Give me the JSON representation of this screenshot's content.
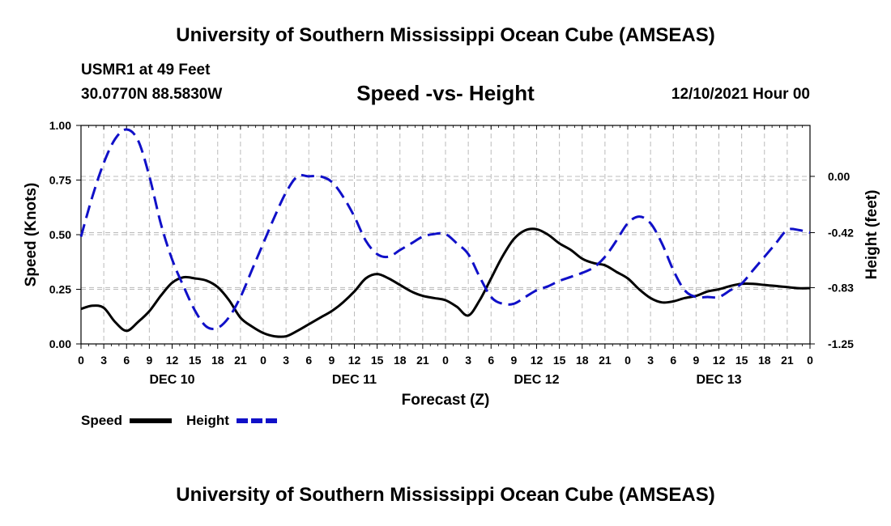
{
  "header": {
    "title": "University of Southern Mississippi Ocean Cube (AMSEAS)",
    "station": "USMR1 at 49 Feet",
    "coords": "30.0770N  88.5830W",
    "subtitle": "Speed -vs- Height",
    "datetime": "12/10/2021 Hour 00"
  },
  "footer": {
    "title": "University of Southern Mississippi Ocean Cube (AMSEAS)"
  },
  "colors": {
    "speed": "#000000",
    "height": "#1010c8",
    "grid": "#bbbbbb"
  },
  "chart_data": {
    "type": "line",
    "xlabel": "Forecast (Z)",
    "ylabel": "Speed (Knots)",
    "y2label": "Height (feet)",
    "xlim": [
      0,
      96
    ],
    "ylim": [
      0,
      1
    ],
    "y2lim": [
      -1.25,
      0.38
    ],
    "x_ticks": [
      0,
      3,
      6,
      9,
      12,
      15,
      18,
      21,
      24,
      27,
      30,
      33,
      36,
      39,
      42,
      45,
      48,
      51,
      54,
      57,
      60,
      63,
      66,
      69,
      72,
      75,
      78,
      81,
      84,
      87,
      90,
      93,
      96
    ],
    "x_tick_labels": [
      "0",
      "3",
      "6",
      "9",
      "12",
      "15",
      "18",
      "21",
      "0",
      "3",
      "6",
      "9",
      "12",
      "15",
      "18",
      "21",
      "0",
      "3",
      "6",
      "9",
      "12",
      "15",
      "18",
      "21",
      "0",
      "3",
      "6",
      "9",
      "12",
      "15",
      "18",
      "21",
      "0"
    ],
    "day_labels": [
      {
        "x": 12,
        "label": "DEC 10"
      },
      {
        "x": 36,
        "label": "DEC 11"
      },
      {
        "x": 60,
        "label": "DEC 12"
      },
      {
        "x": 84,
        "label": "DEC 13"
      }
    ],
    "y_ticks": [
      0.0,
      0.25,
      0.5,
      0.75,
      1.0
    ],
    "y_tick_labels": [
      "0.00",
      "0.25",
      "0.50",
      "0.75",
      "1.00"
    ],
    "y2_ticks": [
      0.0,
      -0.42,
      -0.83,
      -1.25
    ],
    "y2_tick_labels": [
      "0.00",
      "-0.42",
      "-0.83",
      "-1.25"
    ],
    "series": [
      {
        "name": "Speed",
        "axis": "left",
        "style": "solid",
        "x": [
          0,
          1.5,
          3,
          4.5,
          6,
          7.5,
          9,
          10.5,
          12,
          13.5,
          15,
          16.5,
          18,
          19.5,
          21,
          22.5,
          24,
          25.5,
          27,
          28.5,
          30,
          31.5,
          33,
          34.5,
          36,
          37.5,
          39,
          40.5,
          42,
          43.5,
          45,
          46.5,
          48,
          49.5,
          51,
          52.5,
          54,
          55.5,
          57,
          58.5,
          60,
          61.5,
          63,
          64.5,
          66,
          67.5,
          69,
          70.5,
          72,
          73.5,
          75,
          76.5,
          78,
          79.5,
          81,
          82.5,
          84,
          85.5,
          87,
          88.5,
          90,
          91.5,
          93,
          94.5,
          96
        ],
        "values": [
          0.16,
          0.175,
          0.165,
          0.1,
          0.06,
          0.1,
          0.15,
          0.22,
          0.28,
          0.305,
          0.3,
          0.29,
          0.26,
          0.2,
          0.12,
          0.08,
          0.05,
          0.035,
          0.035,
          0.06,
          0.09,
          0.12,
          0.15,
          0.19,
          0.24,
          0.3,
          0.32,
          0.3,
          0.27,
          0.24,
          0.22,
          0.21,
          0.2,
          0.17,
          0.13,
          0.2,
          0.3,
          0.4,
          0.48,
          0.52,
          0.525,
          0.5,
          0.46,
          0.43,
          0.39,
          0.37,
          0.36,
          0.33,
          0.3,
          0.25,
          0.21,
          0.19,
          0.195,
          0.21,
          0.22,
          0.24,
          0.25,
          0.265,
          0.275,
          0.275,
          0.27,
          0.265,
          0.26,
          0.255,
          0.255
        ]
      },
      {
        "name": "Height",
        "axis": "right",
        "style": "dashed",
        "x": [
          0,
          1.5,
          3,
          4.5,
          6,
          7.5,
          9,
          10.5,
          12,
          13.5,
          15,
          16.5,
          18,
          19.5,
          21,
          22.5,
          24,
          25.5,
          27,
          28.5,
          30,
          31.5,
          33,
          34.5,
          36,
          37.5,
          39,
          40.5,
          42,
          43.5,
          45,
          46.5,
          48,
          49.5,
          51,
          52.5,
          54,
          55.5,
          57,
          58.5,
          60,
          61.5,
          63,
          64.5,
          66,
          67.5,
          69,
          70.5,
          72,
          73.5,
          75,
          76.5,
          78,
          79.5,
          81,
          82.5,
          84,
          85.5,
          87,
          88.5,
          90,
          91.5,
          93,
          94.5,
          96
        ],
        "values": [
          -0.45,
          -0.15,
          0.1,
          0.28,
          0.35,
          0.27,
          0.0,
          -0.35,
          -0.62,
          -0.82,
          -1.0,
          -1.12,
          -1.13,
          -1.05,
          -0.9,
          -0.7,
          -0.5,
          -0.3,
          -0.12,
          0.0,
          0.0,
          0.0,
          -0.04,
          -0.15,
          -0.3,
          -0.48,
          -0.58,
          -0.6,
          -0.55,
          -0.5,
          -0.45,
          -0.43,
          -0.43,
          -0.5,
          -0.58,
          -0.75,
          -0.9,
          -0.95,
          -0.95,
          -0.9,
          -0.85,
          -0.82,
          -0.78,
          -0.75,
          -0.72,
          -0.68,
          -0.6,
          -0.48,
          -0.35,
          -0.3,
          -0.35,
          -0.5,
          -0.7,
          -0.85,
          -0.9,
          -0.9,
          -0.9,
          -0.85,
          -0.8,
          -0.7,
          -0.6,
          -0.5,
          -0.4,
          -0.4,
          -0.42
        ]
      }
    ],
    "legend": [
      {
        "label": "Speed",
        "style": "solid"
      },
      {
        "label": "Height",
        "style": "dashed"
      }
    ]
  }
}
